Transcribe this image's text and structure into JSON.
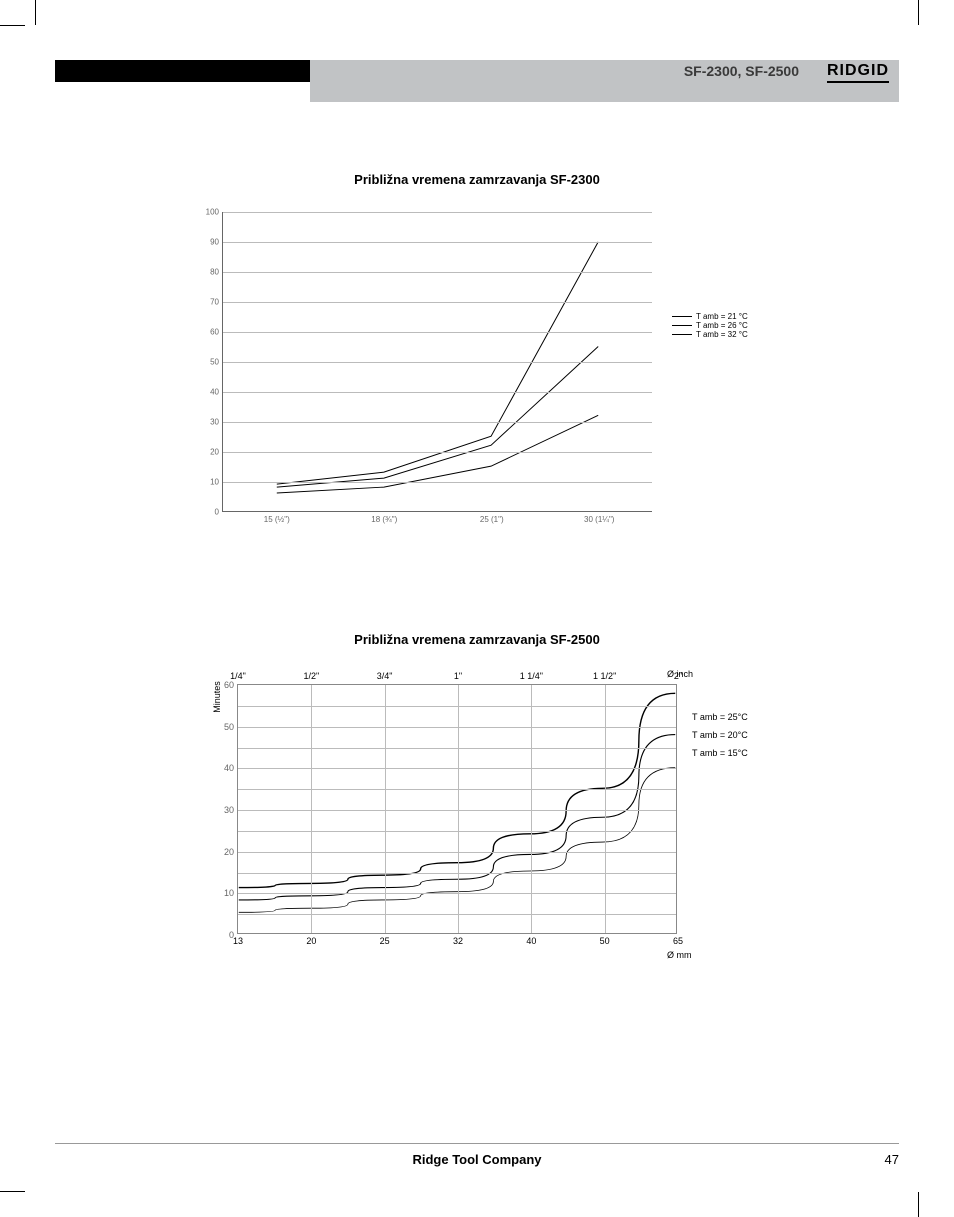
{
  "header": {
    "label": "SF-2300, SF-2500",
    "brand": "RIDGID"
  },
  "chart1": {
    "title": "Približna vremena zamrzavanja SF-2300",
    "type": "line",
    "xlabels": [
      "15 (½\")",
      "18 (¾\")",
      "25 (1\")",
      "30 (1¼\")"
    ],
    "ylim": [
      0,
      100
    ],
    "ytick_step": 10,
    "legend": [
      "T amb = 21 °C",
      "T amb = 26 °C",
      "T amb = 32 °C"
    ],
    "series": [
      {
        "name": "T21",
        "values": [
          6,
          8,
          15,
          32
        ],
        "width": 1
      },
      {
        "name": "T26",
        "values": [
          8,
          11,
          22,
          55
        ],
        "width": 1
      },
      {
        "name": "T32",
        "values": [
          9,
          13,
          25,
          90
        ],
        "width": 1
      }
    ],
    "grid_color": "#bbbbbb",
    "background_color": "#ffffff"
  },
  "chart2": {
    "title": "Približna vremena zamrzavanja SF-2500",
    "type": "line",
    "ylabel": "Minutes",
    "x_top_labels": [
      "1/4\"",
      "1/2\"",
      "3/4\"",
      "1\"",
      "1 1/4\"",
      "1 1/2\"",
      "2\""
    ],
    "x_bottom_labels": [
      "13",
      "20",
      "25",
      "32",
      "40",
      "50",
      "65"
    ],
    "x_top_caption": "Ø inch",
    "x_bottom_caption": "Ø mm",
    "ylim": [
      0,
      60
    ],
    "ytick_step": 10,
    "legend": [
      "T amb = 25°C",
      "T amb = 20°C",
      "T amb = 15°C"
    ],
    "series": [
      {
        "name": "T25",
        "values": [
          11,
          12,
          14,
          17,
          24,
          35,
          58
        ],
        "width": 1.4
      },
      {
        "name": "T20",
        "values": [
          8,
          9,
          11,
          13,
          19,
          28,
          48
        ],
        "width": 1.1
      },
      {
        "name": "T15",
        "values": [
          5,
          6,
          8,
          10,
          15,
          22,
          40
        ],
        "width": 0.8
      }
    ],
    "grid_color": "#bbbbbb",
    "background_color": "#ffffff"
  },
  "footer": {
    "company": "Ridge Tool Company",
    "page": "47"
  }
}
